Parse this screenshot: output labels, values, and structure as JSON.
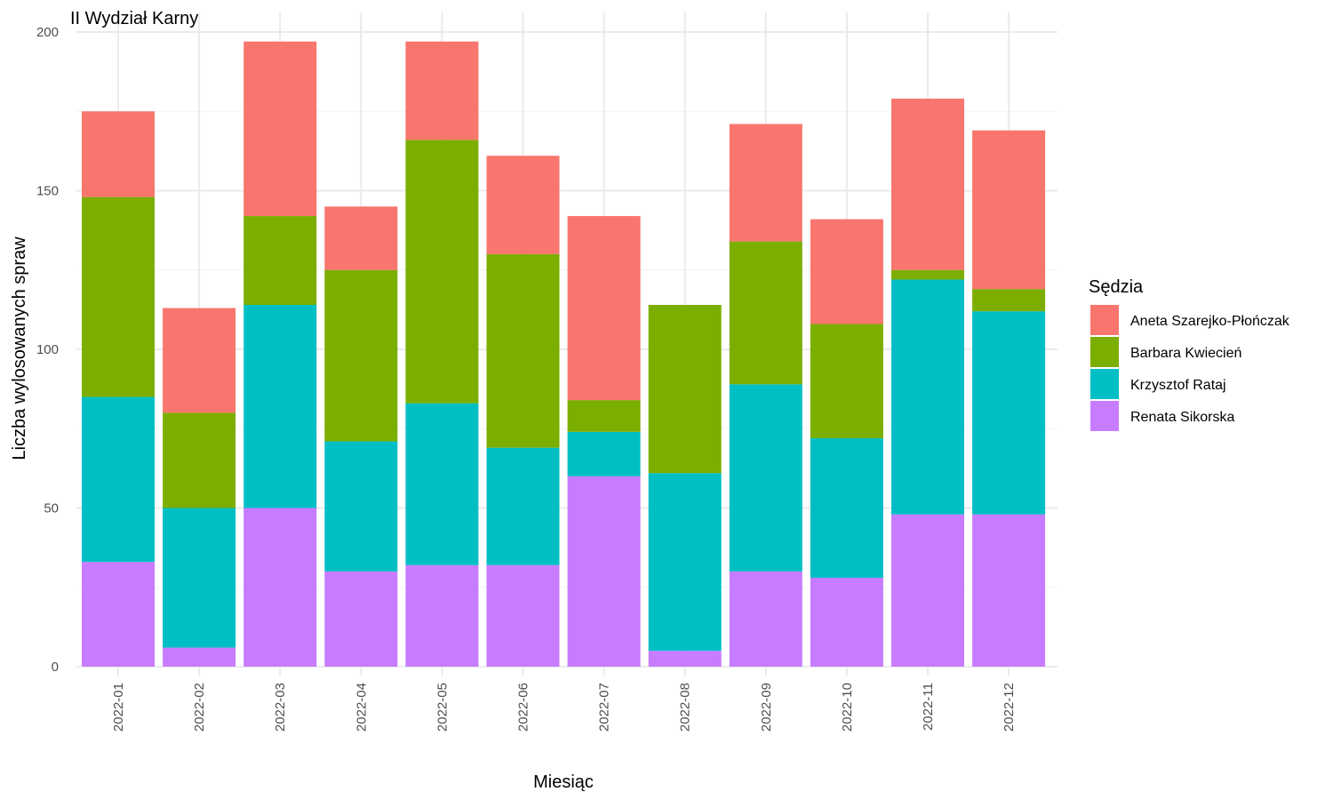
{
  "chart_data": {
    "type": "bar",
    "stacked": true,
    "title": "II Wydział Karny",
    "xlabel": "Miesiąc",
    "ylabel": "Liczba wylosowanych spraw",
    "ylim": [
      0,
      200
    ],
    "yticks": [
      0,
      50,
      100,
      150,
      200
    ],
    "grid": true,
    "legend_title": "Sędzia",
    "legend_position": "right",
    "categories": [
      "2022-01",
      "2022-02",
      "2022-03",
      "2022-04",
      "2022-05",
      "2022-06",
      "2022-07",
      "2022-08",
      "2022-09",
      "2022-10",
      "2022-11",
      "2022-12"
    ],
    "series": [
      {
        "name": "Aneta Szarejko-Płończak",
        "color": "#F8766D",
        "values": [
          27,
          33,
          55,
          20,
          31,
          31,
          58,
          0,
          37,
          33,
          54,
          50
        ]
      },
      {
        "name": "Barbara Kwiecień",
        "color": "#7CAE00",
        "values": [
          63,
          30,
          28,
          54,
          83,
          61,
          10,
          53,
          45,
          36,
          3,
          7
        ]
      },
      {
        "name": "Krzysztof Rataj",
        "color": "#00BFC4",
        "values": [
          52,
          44,
          64,
          41,
          51,
          37,
          14,
          56,
          59,
          44,
          74,
          64
        ]
      },
      {
        "name": "Renata Sikorska",
        "color": "#C77CFF",
        "values": [
          33,
          6,
          50,
          30,
          32,
          32,
          60,
          5,
          30,
          28,
          48,
          48
        ]
      }
    ]
  }
}
